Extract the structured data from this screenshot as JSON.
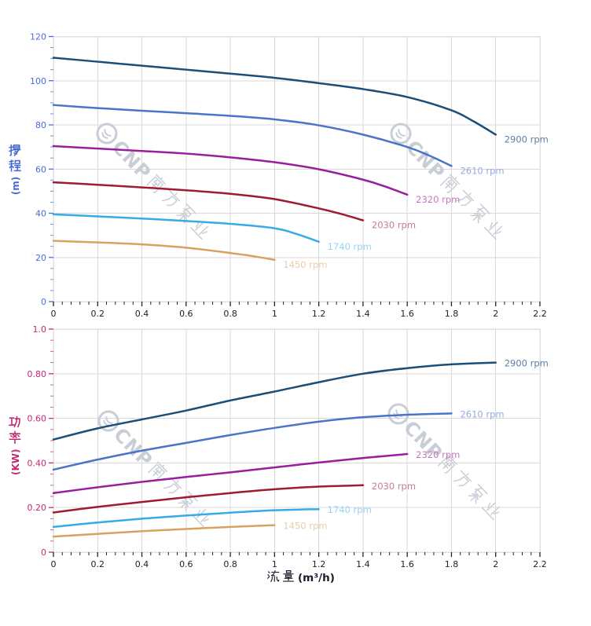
{
  "watermark": {
    "text": "CNP 南方泵业"
  },
  "x_axis": {
    "title": "流量 (m³/h)",
    "min": 0,
    "max": 2.2,
    "major_step": 0.2,
    "minor_step": 0.04,
    "tick_labels": [
      "0",
      "0.2",
      "0.4",
      "0.6",
      "0.8",
      "1",
      "1.2",
      "1.4",
      "1.6",
      "1.8",
      "2",
      "2.2"
    ]
  },
  "chart_data": [
    {
      "type": "line",
      "name": "head-curves",
      "ylabel": "扬程 (m)",
      "ylabel_cn": "扬程",
      "ylabel_unit": "(m)",
      "xlabel": "流量 (m³/h)",
      "ylim": [
        0,
        120
      ],
      "y_major": 20,
      "y_minor": 5,
      "y_tick_labels": [
        "0",
        "20",
        "40",
        "60",
        "80",
        "100",
        "120"
      ],
      "axis_color": "#4a6bd6",
      "series": [
        {
          "name": "2900 rpm",
          "color": "#1b4e79",
          "label_color": "#5b80a8",
          "x": [
            0,
            0.2,
            0.4,
            0.6,
            0.8,
            1.0,
            1.2,
            1.4,
            1.6,
            1.8,
            1.9,
            2.0
          ],
          "y": [
            110.4,
            108.6,
            106.8,
            105.0,
            103.2,
            101.3,
            98.9,
            96.2,
            92.6,
            86.6,
            81.6,
            75.6
          ]
        },
        {
          "name": "2610 rpm",
          "color": "#4a74c9",
          "label_color": "#98abdf",
          "x": [
            0,
            0.2,
            0.4,
            0.6,
            0.8,
            1.0,
            1.2,
            1.4,
            1.6,
            1.7,
            1.8
          ],
          "y": [
            89.0,
            87.6,
            86.4,
            85.3,
            84.1,
            82.5,
            79.8,
            75.6,
            70.0,
            66.1,
            61.4
          ]
        },
        {
          "name": "2320 rpm",
          "color": "#9a1d9e",
          "label_color": "#c478c0",
          "x": [
            0,
            0.2,
            0.4,
            0.6,
            0.8,
            1.0,
            1.2,
            1.4,
            1.5,
            1.6
          ],
          "y": [
            70.4,
            69.3,
            68.2,
            67.0,
            65.3,
            63.1,
            59.9,
            55.2,
            52.1,
            48.4
          ]
        },
        {
          "name": "2030 rpm",
          "color": "#9e1b33",
          "label_color": "#c27f8d",
          "x": [
            0,
            0.2,
            0.4,
            0.6,
            0.8,
            1.0,
            1.2,
            1.3,
            1.4
          ],
          "y": [
            54.0,
            52.9,
            51.7,
            50.4,
            48.8,
            46.4,
            42.2,
            39.7,
            36.8
          ]
        },
        {
          "name": "1740 rpm",
          "color": "#35ace4",
          "label_color": "#96d3f2",
          "x": [
            0,
            0.2,
            0.4,
            0.6,
            0.8,
            1.0,
            1.1,
            1.2
          ],
          "y": [
            39.5,
            38.6,
            37.6,
            36.5,
            35.2,
            33.2,
            30.6,
            27.1
          ]
        },
        {
          "name": "1450 rpm",
          "color": "#d8a25d",
          "label_color": "#edcba4",
          "x": [
            0,
            0.2,
            0.4,
            0.6,
            0.8,
            0.9,
            1.0
          ],
          "y": [
            27.5,
            26.8,
            25.9,
            24.4,
            22.0,
            20.6,
            18.9
          ]
        }
      ]
    },
    {
      "type": "line",
      "name": "power-curves",
      "ylabel": "功率 (KW)",
      "ylabel_cn": "功率",
      "ylabel_unit": "(KW)",
      "xlabel": "流量 (m³/h)",
      "ylim": [
        0,
        1.0
      ],
      "y_major": 0.2,
      "y_minor": 0.05,
      "y_tick_labels": [
        "0",
        "0.20",
        "0.40",
        "0.60",
        "0.80",
        "1.0"
      ],
      "axis_color": "#c22a72",
      "series": [
        {
          "name": "2900 rpm",
          "color": "#1b4e79",
          "label_color": "#5b80a8",
          "x": [
            0,
            0.2,
            0.4,
            0.6,
            0.8,
            1.0,
            1.2,
            1.4,
            1.6,
            1.8,
            2.0
          ],
          "y": [
            0.505,
            0.555,
            0.595,
            0.635,
            0.68,
            0.72,
            0.762,
            0.8,
            0.825,
            0.842,
            0.85
          ]
        },
        {
          "name": "2610 rpm",
          "color": "#4a74c9",
          "label_color": "#98abdf",
          "x": [
            0,
            0.2,
            0.4,
            0.6,
            0.8,
            1.0,
            1.2,
            1.4,
            1.6,
            1.8
          ],
          "y": [
            0.37,
            0.415,
            0.455,
            0.49,
            0.525,
            0.557,
            0.585,
            0.605,
            0.616,
            0.622
          ]
        },
        {
          "name": "2320 rpm",
          "color": "#9a1d9e",
          "label_color": "#c478c0",
          "x": [
            0,
            0.2,
            0.4,
            0.6,
            0.8,
            1.0,
            1.2,
            1.4,
            1.6
          ],
          "y": [
            0.265,
            0.291,
            0.315,
            0.337,
            0.358,
            0.38,
            0.402,
            0.422,
            0.44
          ]
        },
        {
          "name": "2030 rpm",
          "color": "#9e1b33",
          "label_color": "#c27f8d",
          "x": [
            0,
            0.2,
            0.4,
            0.6,
            0.8,
            1.0,
            1.2,
            1.4
          ],
          "y": [
            0.178,
            0.203,
            0.225,
            0.246,
            0.265,
            0.282,
            0.294,
            0.3
          ]
        },
        {
          "name": "1740 rpm",
          "color": "#35ace4",
          "label_color": "#96d3f2",
          "x": [
            0,
            0.2,
            0.4,
            0.6,
            0.8,
            1.0,
            1.2
          ],
          "y": [
            0.113,
            0.133,
            0.15,
            0.164,
            0.177,
            0.188,
            0.193
          ]
        },
        {
          "name": "1450 rpm",
          "color": "#d8a25d",
          "label_color": "#edcba4",
          "x": [
            0,
            0.2,
            0.4,
            0.6,
            0.8,
            1.0
          ],
          "y": [
            0.07,
            0.082,
            0.094,
            0.104,
            0.113,
            0.121
          ]
        }
      ]
    }
  ]
}
